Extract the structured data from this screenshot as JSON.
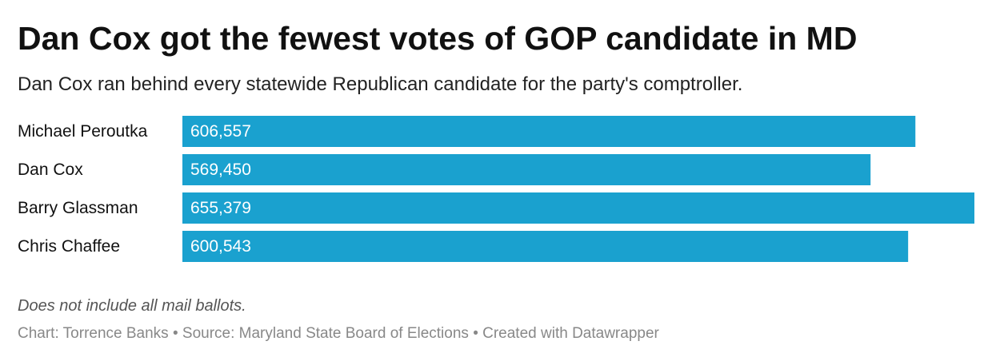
{
  "header": {
    "title": "Dan Cox got the fewest votes of GOP candidate in MD",
    "subtitle": "Dan Cox ran behind every statewide Republican candidate for the party's comptroller."
  },
  "chart_data": {
    "type": "bar",
    "orientation": "horizontal",
    "categories": [
      "Michael Peroutka",
      "Dan Cox",
      "Barry Glassman",
      "Chris Chaffee"
    ],
    "values": [
      606557,
      569450,
      655379,
      600543
    ],
    "value_labels": [
      "606,557",
      "569,450",
      "655,379",
      "600,543"
    ],
    "bar_color": "#1aa1cf",
    "xlim": [
      0,
      655379
    ],
    "grid": false,
    "legend": "none"
  },
  "footer": {
    "note": "Does not include all mail ballots.",
    "credits": "Chart: Torrence Banks • Source: Maryland State Board of Elections • Created with Datawrapper"
  }
}
